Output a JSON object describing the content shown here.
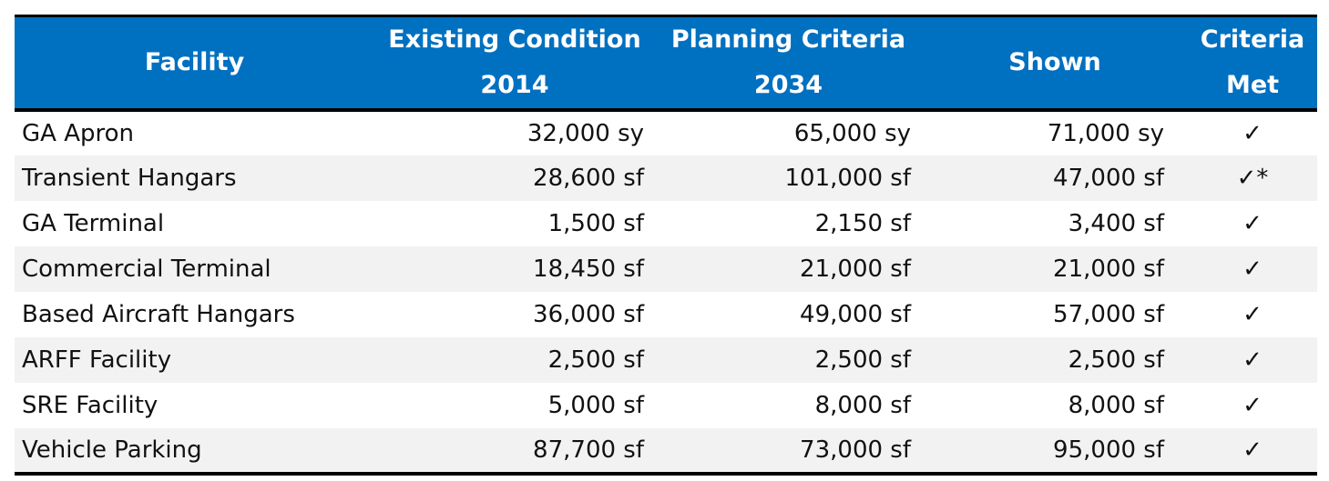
{
  "table": {
    "headers": {
      "facility": [
        "Facility"
      ],
      "existing": [
        "Existing Condition",
        "2014"
      ],
      "planning": [
        "Planning Criteria",
        "2034"
      ],
      "shown": [
        "Shown"
      ],
      "criteria": [
        "Criteria",
        "Met"
      ]
    },
    "rows": [
      {
        "facility": "GA Apron",
        "existing": "32,000 sy",
        "planning": "65,000 sy",
        "shown": "71,000 sy",
        "met": "✓"
      },
      {
        "facility": "Transient Hangars",
        "existing": "28,600 sf",
        "planning": "101,000 sf",
        "shown": "47,000 sf",
        "met": "✓*"
      },
      {
        "facility": "GA Terminal",
        "existing": "1,500 sf",
        "planning": "2,150 sf",
        "shown": "3,400 sf",
        "met": "✓"
      },
      {
        "facility": "Commercial Terminal",
        "existing": "18,450 sf",
        "planning": "21,000 sf",
        "shown": "21,000 sf",
        "met": "✓"
      },
      {
        "facility": "Based Aircraft Hangars",
        "existing": "36,000 sf",
        "planning": "49,000 sf",
        "shown": "57,000 sf",
        "met": "✓"
      },
      {
        "facility": "ARFF Facility",
        "existing": "2,500 sf",
        "planning": "2,500 sf",
        "shown": "2,500 sf",
        "met": "✓"
      },
      {
        "facility": "SRE Facility",
        "existing": "5,000 sf",
        "planning": "8,000 sf",
        "shown": "8,000 sf",
        "met": "✓"
      },
      {
        "facility": "Vehicle Parking",
        "existing": "87,700 sf",
        "planning": "73,000 sf",
        "shown": "95,000 sf",
        "met": "✓"
      }
    ]
  },
  "colors": {
    "header_bg": "#0070c0",
    "header_text": "#ffffff",
    "row_shade": "#f2f2f2",
    "rule": "#000000"
  }
}
